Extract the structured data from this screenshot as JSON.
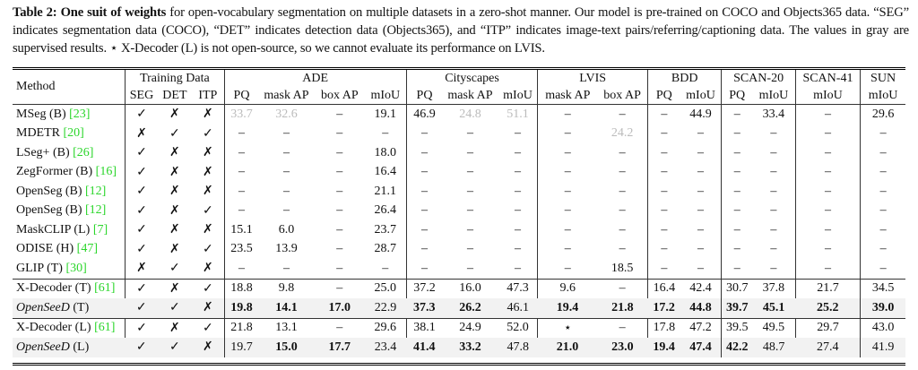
{
  "caption": {
    "label": "Table 2:",
    "bold_lead": "One suit of weights",
    "text": "for open-vocabulary segmentation on multiple datasets in a zero-shot manner. Our model is pre-trained on COCO and Objects365 data. “SEG” indicates segmentation data (COCO), “DET” indicates detection data (Objects365), and “ITP” indicates image-text pairs/referring/captioning data. The values in gray are supervised results. ⋆ X-Decoder (L) is not open-source, so we cannot evaluate its performance on LVIS."
  },
  "header": {
    "method": "Method",
    "training_data": "Training Data",
    "training_cols": [
      "SEG",
      "DET",
      "ITP"
    ],
    "groups": [
      "ADE",
      "Cityscapes",
      "LVIS",
      "BDD",
      "SCAN-20",
      "SCAN-41",
      "SUN"
    ],
    "ade_cols": [
      "PQ",
      "mask AP",
      "box AP",
      "mIoU"
    ],
    "city_cols": [
      "PQ",
      "mask AP",
      "mIoU"
    ],
    "lvis_cols": [
      "mask AP",
      "box AP"
    ],
    "bdd_cols": [
      "PQ",
      "mIoU"
    ],
    "scan20_cols": [
      "PQ",
      "mIoU"
    ],
    "scan41_cols": [
      "mIoU"
    ],
    "sun_cols": [
      "mIoU"
    ]
  },
  "symbols": {
    "check": "✓",
    "cross": "✗"
  },
  "colors": {
    "gray_value": "#bbbbbb",
    "citation": "#2bd62b",
    "highlight_row": "#f2f2f2"
  },
  "rows": [
    {
      "name": "MSeg (B)",
      "ref": "[23]",
      "train": [
        "✓",
        "✗",
        "✗"
      ],
      "values": [
        "33.7",
        "32.6",
        "–",
        "19.1",
        "46.9",
        "24.8",
        "51.1",
        "–",
        "–",
        "–",
        "44.9",
        "–",
        "33.4",
        "–",
        "29.6"
      ],
      "gray": [
        0,
        1,
        5,
        6
      ],
      "bold": []
    },
    {
      "name": "MDETR",
      "ref": "[20]",
      "train": [
        "✗",
        "✓",
        "✓"
      ],
      "values": [
        "–",
        "–",
        "–",
        "–",
        "–",
        "–",
        "–",
        "–",
        "24.2",
        "–",
        "–",
        "–",
        "–",
        "–",
        "–"
      ],
      "gray": [
        8
      ],
      "bold": []
    },
    {
      "name": "LSeg+ (B)",
      "ref": "[26]",
      "train": [
        "✓",
        "✗",
        "✗"
      ],
      "values": [
        "–",
        "–",
        "–",
        "18.0",
        "–",
        "–",
        "–",
        "–",
        "–",
        "–",
        "–",
        "–",
        "–",
        "–",
        "–"
      ],
      "gray": [],
      "bold": []
    },
    {
      "name": "ZegFormer (B)",
      "ref": "[16]",
      "train": [
        "✓",
        "✗",
        "✗"
      ],
      "values": [
        "–",
        "–",
        "–",
        "16.4",
        "–",
        "–",
        "–",
        "–",
        "–",
        "–",
        "–",
        "–",
        "–",
        "–",
        "–"
      ],
      "gray": [],
      "bold": []
    },
    {
      "name": "OpenSeg (B)",
      "ref": "[12]",
      "train": [
        "✓",
        "✗",
        "✗"
      ],
      "values": [
        "–",
        "–",
        "–",
        "21.1",
        "–",
        "–",
        "–",
        "–",
        "–",
        "–",
        "–",
        "–",
        "–",
        "–",
        "–"
      ],
      "gray": [],
      "bold": []
    },
    {
      "name": "OpenSeg (B)",
      "ref": "[12]",
      "train": [
        "✓",
        "✗",
        "✓"
      ],
      "values": [
        "–",
        "–",
        "–",
        "26.4",
        "–",
        "–",
        "–",
        "–",
        "–",
        "–",
        "–",
        "–",
        "–",
        "–",
        "–"
      ],
      "gray": [],
      "bold": []
    },
    {
      "name": "MaskCLIP (L)",
      "ref": "[7]",
      "train": [
        "✓",
        "✗",
        "✗"
      ],
      "values": [
        "15.1",
        "6.0",
        "–",
        "23.7",
        "–",
        "–",
        "–",
        "–",
        "–",
        "–",
        "–",
        "–",
        "–",
        "–",
        "–"
      ],
      "gray": [],
      "bold": []
    },
    {
      "name": "ODISE (H)",
      "ref": "[47]",
      "train": [
        "✓",
        "✗",
        "✓"
      ],
      "values": [
        "23.5",
        "13.9",
        "–",
        "28.7",
        "–",
        "–",
        "–",
        "–",
        "–",
        "–",
        "–",
        "–",
        "–",
        "–",
        "–"
      ],
      "gray": [],
      "bold": []
    },
    {
      "name": "GLIP (T)",
      "ref": "[30]",
      "train": [
        "✗",
        "✓",
        "✗"
      ],
      "values": [
        "–",
        "–",
        "–",
        "–",
        "–",
        "–",
        "–",
        "–",
        "18.5",
        "–",
        "–",
        "–",
        "–",
        "–",
        "–"
      ],
      "gray": [],
      "bold": []
    },
    {
      "name": "X-Decoder (T)",
      "ref": "[61]",
      "train": [
        "✓",
        "✗",
        "✓"
      ],
      "values": [
        "18.8",
        "9.8",
        "–",
        "25.0",
        "37.2",
        "16.0",
        "47.3",
        "9.6",
        "–",
        "16.4",
        "42.4",
        "30.7",
        "37.8",
        "21.7",
        "34.5"
      ],
      "gray": [],
      "bold": [],
      "section_start": true
    },
    {
      "name": "OpenSeeD",
      "suffix": "(T)",
      "ours": true,
      "train": [
        "✓",
        "✓",
        "✗"
      ],
      "values": [
        "19.8",
        "14.1",
        "17.0",
        "22.9",
        "37.3",
        "26.2",
        "46.1",
        "19.4",
        "21.8",
        "17.2",
        "44.8",
        "39.7",
        "45.1",
        "25.2",
        "39.0"
      ],
      "gray": [],
      "bold": [
        0,
        1,
        2,
        4,
        5,
        7,
        8,
        9,
        10,
        11,
        12,
        13,
        14
      ]
    },
    {
      "name": "X-Decoder (L)",
      "ref": "[61]",
      "train": [
        "✓",
        "✗",
        "✓"
      ],
      "values": [
        "21.8",
        "13.1",
        "–",
        "29.6",
        "38.1",
        "24.9",
        "52.0",
        "⋆",
        "–",
        "17.8",
        "47.2",
        "39.5",
        "49.5",
        "29.7",
        "43.0"
      ],
      "gray": [],
      "bold": [],
      "section_start": true
    },
    {
      "name": "OpenSeeD",
      "suffix": "(L)",
      "ours": true,
      "train": [
        "✓",
        "✓",
        "✗"
      ],
      "values": [
        "19.7",
        "15.0",
        "17.7",
        "23.4",
        "41.4",
        "33.2",
        "47.8",
        "21.0",
        "23.0",
        "19.4",
        "47.4",
        "42.2",
        "48.7",
        "27.4",
        "41.9"
      ],
      "gray": [],
      "bold": [
        1,
        2,
        4,
        5,
        7,
        8,
        9,
        10,
        11
      ]
    }
  ]
}
